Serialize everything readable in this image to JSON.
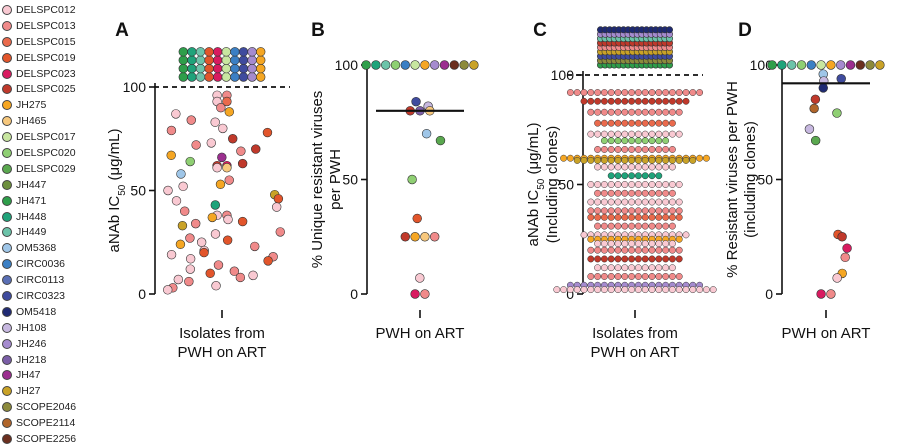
{
  "legend": [
    {
      "name": "DELSPC012",
      "color": "#f9c9d2"
    },
    {
      "name": "DELSPC013",
      "color": "#f08a8a"
    },
    {
      "name": "DELSPC015",
      "color": "#ea6a4c"
    },
    {
      "name": "DELSPC019",
      "color": "#e2552b"
    },
    {
      "name": "DELSPC023",
      "color": "#d81b60"
    },
    {
      "name": "DELSPC025",
      "color": "#c0392b"
    },
    {
      "name": "JH275",
      "color": "#f5a623"
    },
    {
      "name": "JH465",
      "color": "#f7c87d"
    },
    {
      "name": "DELSPC017",
      "color": "#c8e6a0"
    },
    {
      "name": "DELSPC020",
      "color": "#8fcf73"
    },
    {
      "name": "DELSPC029",
      "color": "#5aa84f"
    },
    {
      "name": "JH447",
      "color": "#6d8f3e"
    },
    {
      "name": "JH471",
      "color": "#2e9e4a"
    },
    {
      "name": "JH448",
      "color": "#1fa37a"
    },
    {
      "name": "JH449",
      "color": "#6cc3a9"
    },
    {
      "name": "OM5368",
      "color": "#9fc6e8"
    },
    {
      "name": "CIRC0036",
      "color": "#3b7fc4"
    },
    {
      "name": "CIRC0113",
      "color": "#5a6fb5"
    },
    {
      "name": "CIRC0323",
      "color": "#3f4b9e"
    },
    {
      "name": "OM5418",
      "color": "#1f2a73"
    },
    {
      "name": "JH108",
      "color": "#c7b8e0"
    },
    {
      "name": "JH246",
      "color": "#a58bcf"
    },
    {
      "name": "JH218",
      "color": "#7b5ea7"
    },
    {
      "name": "JH47",
      "color": "#9b2f8f"
    },
    {
      "name": "JH27",
      "color": "#c9a227"
    },
    {
      "name": "SCOPE2046",
      "color": "#8c8a3c"
    },
    {
      "name": "SCOPE2114",
      "color": "#b0652a"
    },
    {
      "name": "SCOPE2256",
      "color": "#6b2f1f"
    }
  ],
  "chart_data": [
    {
      "panel": "A",
      "type": "scatter",
      "ylabel_main": "aNAb IC",
      "ylabel_sub": "50",
      "ylabel_unit": " (μg/mL)",
      "xlabel": [
        "Isolates from",
        "PWH on ART"
      ],
      "ylim": [
        0,
        100
      ],
      "yticks": [
        0,
        50,
        100
      ],
      "dashed_line": 100,
      "top_cluster": {
        "rows": 4,
        "cols": 10,
        "colors": [
          "#2e9e4a",
          "#1fa37a",
          "#6cc3a9",
          "#e2552b",
          "#d81b60",
          "#c8e6a0",
          "#3b7fc4",
          "#3f4b9e",
          "#a58bcf",
          "#f5a623"
        ]
      },
      "points": [
        [
          96,
          "#f9c9d2"
        ],
        [
          96,
          "#f08a8a"
        ],
        [
          93,
          "#f9c9d2"
        ],
        [
          93,
          "#ea6a4c"
        ],
        [
          90,
          "#f08a8a"
        ],
        [
          88,
          "#f5a623"
        ],
        [
          87,
          "#f9c9d2"
        ],
        [
          84,
          "#f08a8a"
        ],
        [
          83,
          "#f9c9d2"
        ],
        [
          80,
          "#f9c9d2"
        ],
        [
          79,
          "#f08a8a"
        ],
        [
          78,
          "#e2552b"
        ],
        [
          75,
          "#c0392b"
        ],
        [
          73,
          "#f9c9d2"
        ],
        [
          72,
          "#f08a8a"
        ],
        [
          70,
          "#c0392b"
        ],
        [
          69,
          "#f08a8a"
        ],
        [
          67,
          "#f5a623"
        ],
        [
          66,
          "#9b2f8f"
        ],
        [
          64,
          "#8fcf73"
        ],
        [
          63,
          "#c0392b"
        ],
        [
          62,
          "#c0392b"
        ],
        [
          62,
          "#d81b60"
        ],
        [
          61,
          "#f9c9d2"
        ],
        [
          61,
          "#f7c87d"
        ],
        [
          58,
          "#9fc6e8"
        ],
        [
          55,
          "#f08a8a"
        ],
        [
          53,
          "#f5a623"
        ],
        [
          52,
          "#f9c9d2"
        ],
        [
          50,
          "#f9c9d2"
        ],
        [
          48,
          "#c9a227"
        ],
        [
          46,
          "#e2552b"
        ],
        [
          45,
          "#f9c9d2"
        ],
        [
          43,
          "#1fa37a"
        ],
        [
          42,
          "#f9c9d2"
        ],
        [
          40,
          "#f08a8a"
        ],
        [
          38,
          "#f9c9d2"
        ],
        [
          38,
          "#f08a8a"
        ],
        [
          37,
          "#f5a623"
        ],
        [
          36,
          "#f9c9d2"
        ],
        [
          35,
          "#e2552b"
        ],
        [
          34,
          "#f08a8a"
        ],
        [
          33,
          "#c9a227"
        ],
        [
          30,
          "#f08a8a"
        ],
        [
          29,
          "#f9c9d2"
        ],
        [
          27,
          "#f08a8a"
        ],
        [
          26,
          "#e2552b"
        ],
        [
          25,
          "#f9c9d2"
        ],
        [
          24,
          "#f5a623"
        ],
        [
          23,
          "#f08a8a"
        ],
        [
          21,
          "#f9c9d2"
        ],
        [
          20,
          "#e2552b"
        ],
        [
          19,
          "#f9c9d2"
        ],
        [
          18,
          "#f08a8a"
        ],
        [
          17,
          "#f9c9d2"
        ],
        [
          16,
          "#e2552b"
        ],
        [
          14,
          "#f08a8a"
        ],
        [
          12,
          "#f9c9d2"
        ],
        [
          11,
          "#f08a8a"
        ],
        [
          10,
          "#e2552b"
        ],
        [
          9,
          "#f9c9d2"
        ],
        [
          8,
          "#f08a8a"
        ],
        [
          7,
          "#f9c9d2"
        ],
        [
          6,
          "#f08a8a"
        ],
        [
          4,
          "#f9c9d2"
        ],
        [
          3,
          "#f08a8a"
        ],
        [
          2,
          "#f9c9d2"
        ]
      ]
    },
    {
      "panel": "B",
      "type": "scatter",
      "ylabel": [
        "% Unique resistant viruses",
        "per PWH"
      ],
      "xlabel": [
        "PWH on ART"
      ],
      "ylim": [
        0,
        100
      ],
      "yticks": [
        0,
        50,
        100
      ],
      "median": 80,
      "points": [
        [
          100,
          "#2e9e4a"
        ],
        [
          100,
          "#1fa37a"
        ],
        [
          100,
          "#6cc3a9"
        ],
        [
          100,
          "#8fcf73"
        ],
        [
          100,
          "#3b7fc4"
        ],
        [
          100,
          "#c8e6a0"
        ],
        [
          100,
          "#f5a623"
        ],
        [
          100,
          "#a58bcf"
        ],
        [
          100,
          "#9b2f8f"
        ],
        [
          100,
          "#6b2f1f"
        ],
        [
          100,
          "#8c8a3c"
        ],
        [
          100,
          "#c9a227"
        ],
        [
          84,
          "#3f4b9e"
        ],
        [
          82,
          "#c7b8e0"
        ],
        [
          80,
          "#c0392b"
        ],
        [
          80,
          "#7b5ea7"
        ],
        [
          80,
          "#f7c87d"
        ],
        [
          70,
          "#9fc6e8"
        ],
        [
          67,
          "#5aa84f"
        ],
        [
          50,
          "#8fcf73"
        ],
        [
          33,
          "#e2552b"
        ],
        [
          25,
          "#c0392b"
        ],
        [
          25,
          "#f5a623"
        ],
        [
          25,
          "#f7c87d"
        ],
        [
          25,
          "#f08a8a"
        ],
        [
          7,
          "#f9c9d2"
        ],
        [
          0,
          "#d81b60"
        ],
        [
          0,
          "#f08a8a"
        ]
      ]
    },
    {
      "panel": "C",
      "type": "scatter",
      "ylabel_main": "aNAb IC",
      "ylabel_sub": "50",
      "ylabel_unit": " (μg/mL)",
      "ylabel_line2": "(Including clones)",
      "xlabel": [
        "Isolates from",
        "PWH on ART"
      ],
      "ylim": [
        0,
        100
      ],
      "yticks": [
        0,
        50,
        100
      ],
      "dashed_line": 100,
      "top_cluster": {
        "rows": 9,
        "cols": 16,
        "colors": [
          "#2e9e4a",
          "#8c8a3c",
          "#3f4b9e",
          "#c9a227",
          "#f08a8a",
          "#c0392b",
          "#6cc3a9",
          "#a58bcf",
          "#1f2a73"
        ]
      },
      "row_levels": [
        [
          92,
          "#f08a8a",
          20
        ],
        [
          88,
          "#c0392b",
          16
        ],
        [
          83,
          "#f08a8a",
          14
        ],
        [
          78,
          "#ea6a4c",
          12
        ],
        [
          73,
          "#f9c9d2",
          14
        ],
        [
          70,
          "#8fcf73",
          10
        ],
        [
          66,
          "#f08a8a",
          12
        ],
        [
          62,
          "#f5a623",
          22
        ],
        [
          61,
          "#c9a227",
          18
        ],
        [
          58,
          "#f9c9d2",
          12
        ],
        [
          54,
          "#1fa37a",
          8
        ],
        [
          50,
          "#f9c9d2",
          14
        ],
        [
          46,
          "#f08a8a",
          12
        ],
        [
          42,
          "#f9c9d2",
          14
        ],
        [
          38,
          "#f08a8a",
          14
        ],
        [
          35,
          "#ea6a4c",
          14
        ],
        [
          31,
          "#f08a8a",
          12
        ],
        [
          27,
          "#f9c9d2",
          16
        ],
        [
          25,
          "#f5a623",
          14
        ],
        [
          23,
          "#f9c9d2",
          12
        ],
        [
          20,
          "#f08a8a",
          14
        ],
        [
          16,
          "#c0392b",
          14
        ],
        [
          12,
          "#f9c9d2",
          12
        ],
        [
          8,
          "#f08a8a",
          14
        ],
        [
          4,
          "#a58bcf",
          20
        ],
        [
          2,
          "#f9c9d2",
          24
        ]
      ]
    },
    {
      "panel": "D",
      "type": "scatter",
      "ylabel": [
        "% Resistant viruses per PWH",
        "(including clones)"
      ],
      "xlabel": [
        "PWH on ART"
      ],
      "ylim": [
        0,
        100
      ],
      "yticks": [
        0,
        50,
        100
      ],
      "median": 92,
      "points": [
        [
          100,
          "#2e9e4a"
        ],
        [
          100,
          "#1fa37a"
        ],
        [
          100,
          "#6cc3a9"
        ],
        [
          100,
          "#8fcf73"
        ],
        [
          100,
          "#3b7fc4"
        ],
        [
          100,
          "#c8e6a0"
        ],
        [
          100,
          "#f5a623"
        ],
        [
          100,
          "#a58bcf"
        ],
        [
          100,
          "#9b2f8f"
        ],
        [
          100,
          "#6b2f1f"
        ],
        [
          100,
          "#8c8a3c"
        ],
        [
          100,
          "#c9a227"
        ],
        [
          96,
          "#9fc6e8"
        ],
        [
          94,
          "#3f4b9e"
        ],
        [
          93,
          "#c7b8e0"
        ],
        [
          90,
          "#1f2a73"
        ],
        [
          85,
          "#c0392b"
        ],
        [
          81,
          "#b0652a"
        ],
        [
          79,
          "#8fcf73"
        ],
        [
          72,
          "#c7b8e0"
        ],
        [
          67,
          "#5aa84f"
        ],
        [
          26,
          "#e2552b"
        ],
        [
          25,
          "#c0392b"
        ],
        [
          20,
          "#d81b60"
        ],
        [
          16,
          "#f08a8a"
        ],
        [
          9,
          "#f5a623"
        ],
        [
          7,
          "#f9c9d2"
        ],
        [
          0,
          "#d81b60"
        ],
        [
          0,
          "#f08a8a"
        ]
      ]
    }
  ],
  "panel_letters": [
    "A",
    "B",
    "C",
    "D"
  ]
}
